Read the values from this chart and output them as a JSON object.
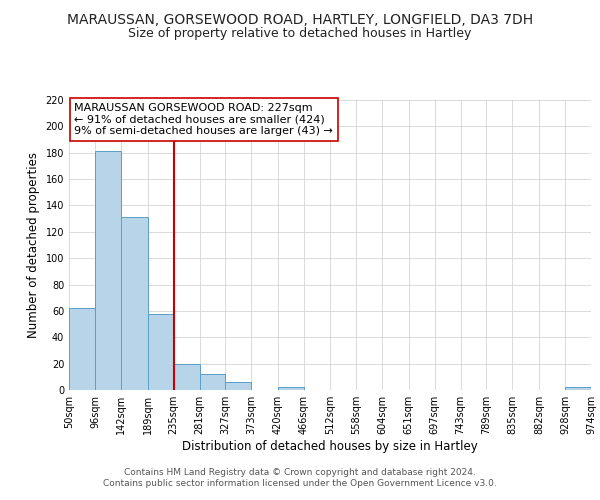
{
  "title": "MARAUSSAN, GORSEWOOD ROAD, HARTLEY, LONGFIELD, DA3 7DH",
  "subtitle": "Size of property relative to detached houses in Hartley",
  "xlabel": "Distribution of detached houses by size in Hartley",
  "ylabel": "Number of detached properties",
  "footer_line1": "Contains HM Land Registry data © Crown copyright and database right 2024.",
  "footer_line2": "Contains public sector information licensed under the Open Government Licence v3.0.",
  "bin_edges": [
    50,
    96,
    142,
    189,
    235,
    281,
    327,
    373,
    420,
    466,
    512,
    558,
    604,
    651,
    697,
    743,
    789,
    835,
    882,
    928,
    974
  ],
  "bin_labels": [
    "50sqm",
    "96sqm",
    "142sqm",
    "189sqm",
    "235sqm",
    "281sqm",
    "327sqm",
    "373sqm",
    "420sqm",
    "466sqm",
    "512sqm",
    "558sqm",
    "604sqm",
    "651sqm",
    "697sqm",
    "743sqm",
    "789sqm",
    "835sqm",
    "882sqm",
    "928sqm",
    "974sqm"
  ],
  "counts": [
    62,
    181,
    131,
    58,
    20,
    12,
    6,
    0,
    2,
    0,
    0,
    0,
    0,
    0,
    0,
    0,
    0,
    0,
    0,
    2
  ],
  "bar_color": "#b8d4e8",
  "bar_edge_color": "#5a9ec9",
  "property_value": 227,
  "vline_color": "#cc0000",
  "vline_x": 235,
  "annotation_box_text": "MARAUSSAN GORSEWOOD ROAD: 227sqm\n← 91% of detached houses are smaller (424)\n9% of semi-detached houses are larger (43) →",
  "ylim": [
    0,
    220
  ],
  "yticks": [
    0,
    20,
    40,
    60,
    80,
    100,
    120,
    140,
    160,
    180,
    200,
    220
  ],
  "background_color": "#ffffff",
  "grid_color": "#cccccc",
  "title_fontsize": 10,
  "subtitle_fontsize": 9,
  "axis_label_fontsize": 8.5,
  "tick_fontsize": 7,
  "annotation_fontsize": 8,
  "footer_fontsize": 6.5
}
